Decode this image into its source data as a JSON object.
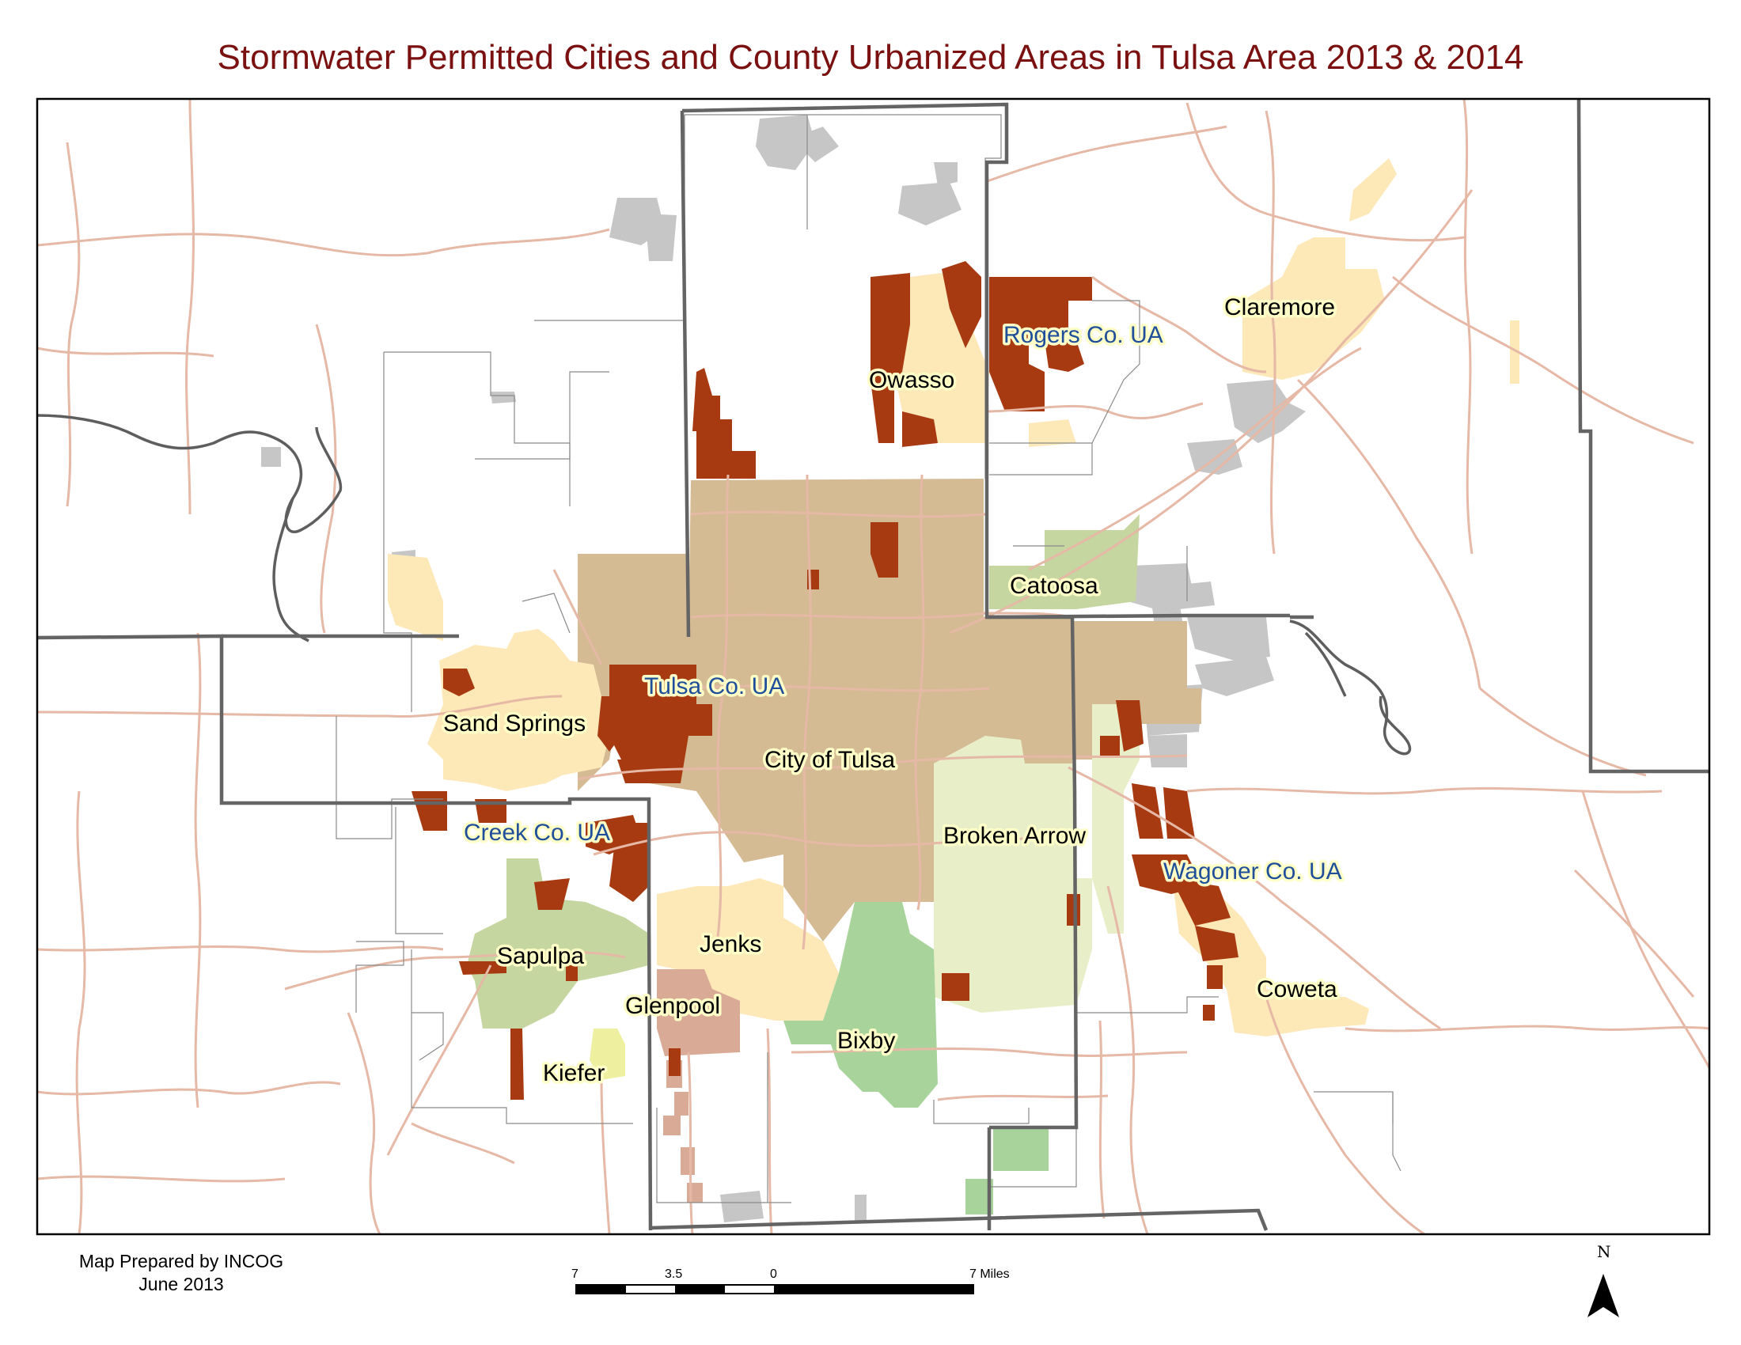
{
  "title": "Stormwater Permitted Cities and County Urbanized Areas in Tulsa Area 2013 & 2014",
  "labels": {
    "claremore": "Claremore",
    "rogers_ua": "Rogers Co. UA",
    "owasso": "Owasso",
    "catoosa": "Catoosa",
    "tulsa_ua": "Tulsa Co. UA",
    "sand_springs": "Sand Springs",
    "city_of_tulsa": "City of Tulsa",
    "broken_arrow": "Broken Arrow",
    "creek_ua": "Creek Co. UA",
    "wagoner_ua": "Wagoner Co. UA",
    "jenks": "Jenks",
    "sapulpa": "Sapulpa",
    "coweta": "Coweta",
    "glenpool": "Glenpool",
    "bixby": "Bixby",
    "kiefer": "Kiefer"
  },
  "credit": {
    "line1": "Map Prepared by INCOG",
    "line2": "June 2013"
  },
  "scale_bar": {
    "tick_left": "7",
    "tick_mid": "3.5",
    "tick_zero": "0",
    "tick_right": "7 Miles"
  },
  "north_label": "N",
  "colors": {
    "title": "#7a1010",
    "city_of_tulsa": "#d4bb94",
    "county_ua": "#a83a12",
    "light_city": "#fde8b8",
    "broken_arrow": "#e8efc8",
    "sapulpa": "#c5d6a0",
    "bixby": "#a8d39a",
    "glenpool": "#d9ab96",
    "gray_areas": "#c6c6c6",
    "roads": "#e6b8a6",
    "county_lines": "#646464",
    "ua_label": "#1f4e9a"
  }
}
